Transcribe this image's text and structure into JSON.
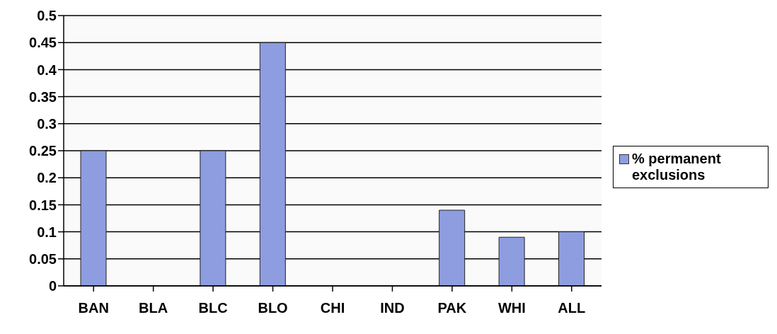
{
  "chart_data": {
    "type": "bar",
    "categories": [
      "BAN",
      "BLA",
      "BLC",
      "BLO",
      "CHI",
      "IND",
      "PAK",
      "WHI",
      "ALL"
    ],
    "series": [
      {
        "name": "% permanent exclusions",
        "color": "#8e9de0",
        "values": [
          0.25,
          0,
          0.25,
          0.45,
          0,
          0,
          0.14,
          0.09,
          0.1
        ]
      }
    ],
    "ylim": [
      0,
      0.5
    ],
    "yticks": [
      0,
      0.05,
      0.1,
      0.15,
      0.2,
      0.25,
      0.3,
      0.35,
      0.4,
      0.45,
      0.5
    ],
    "grid": "y",
    "legend": "right"
  }
}
